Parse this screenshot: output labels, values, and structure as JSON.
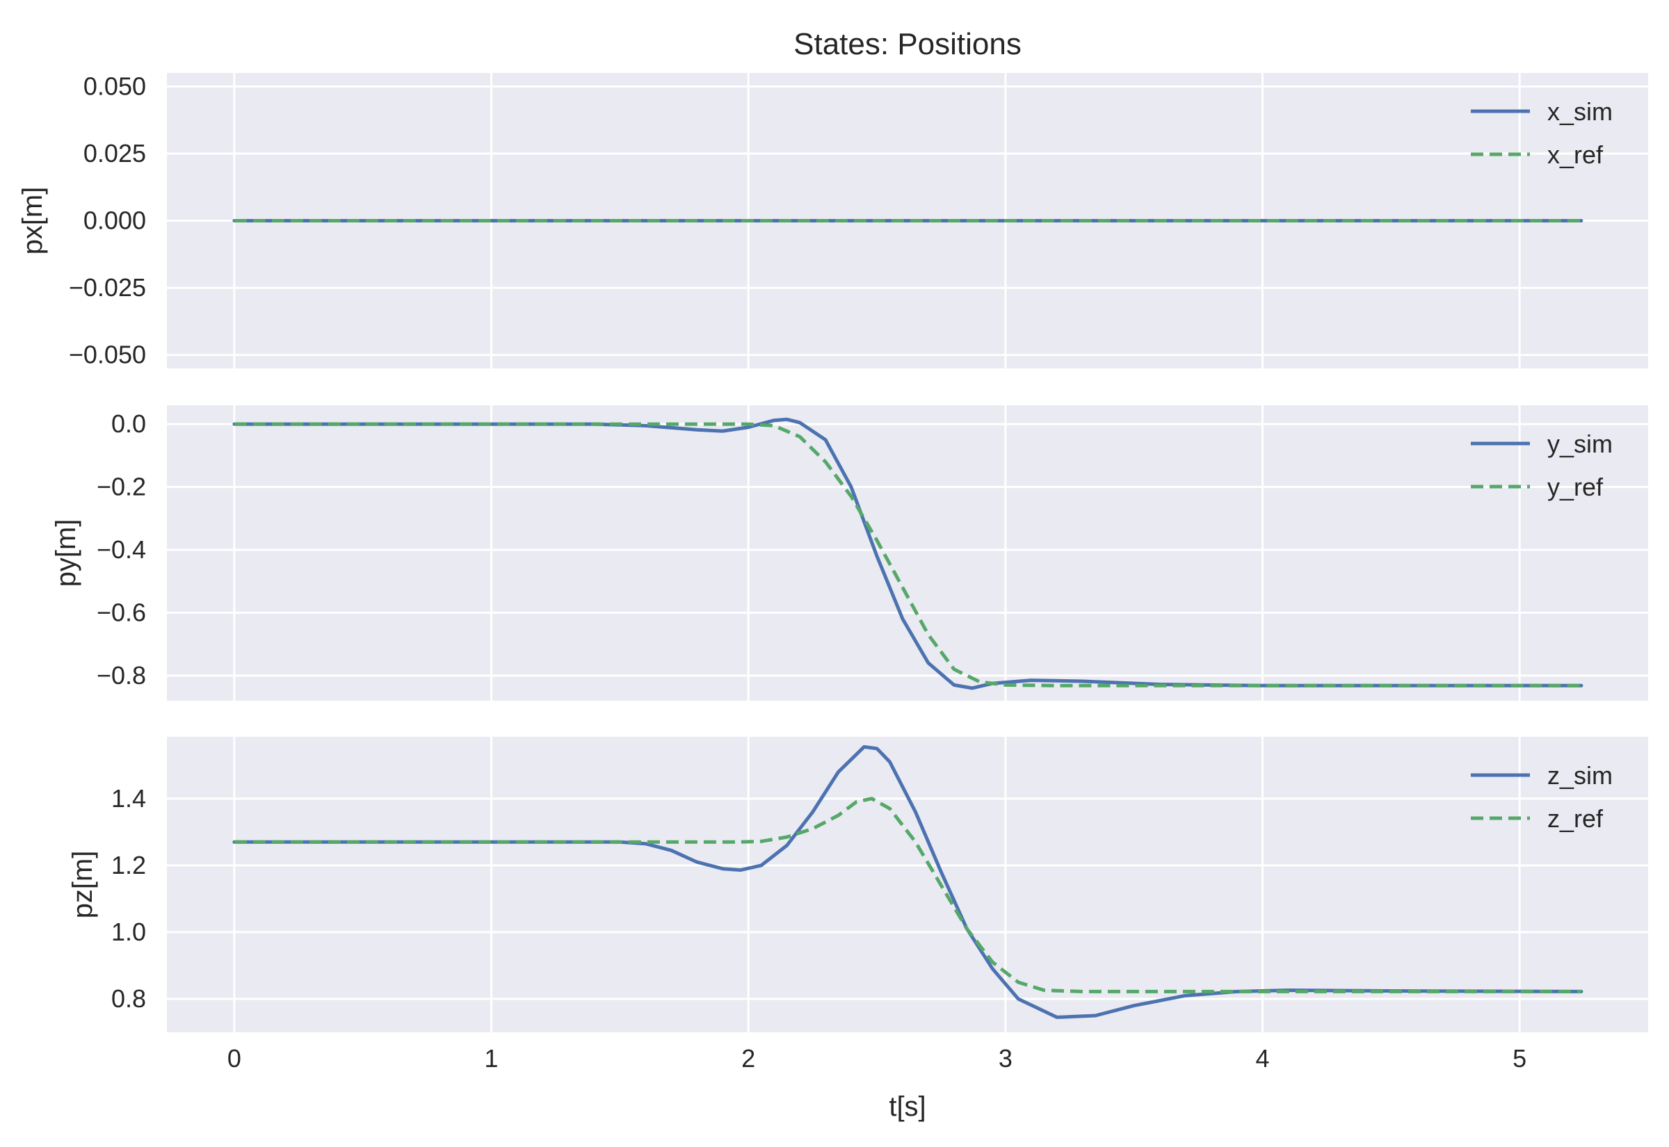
{
  "figure": {
    "title": "States: Positions",
    "xlabel": "t[s]",
    "x_ticks": [
      0,
      1,
      2,
      3,
      4,
      5
    ],
    "background": "#ffffff",
    "axes_face": "#eaeaf2",
    "grid_color": "#ffffff"
  },
  "chart_data": [
    {
      "type": "line",
      "title": "States: Positions",
      "xlabel": "",
      "ylabel": "px[m]",
      "xlim": [
        -0.262,
        5.5
      ],
      "ylim": [
        -0.055,
        0.055
      ],
      "grid": true,
      "legend_position": "top-right",
      "y_ticks": [
        -0.05,
        -0.025,
        0.0,
        0.025,
        0.05
      ],
      "y_tick_labels": [
        "−0.050",
        "−0.025",
        "0.000",
        "0.025",
        "0.050"
      ],
      "series": [
        {
          "name": "x_sim",
          "style": "solid",
          "color": "#4c72b0",
          "x": [
            0,
            5.24
          ],
          "y": [
            0,
            0
          ]
        },
        {
          "name": "x_ref",
          "style": "dashed",
          "color": "#55a868",
          "x": [
            0,
            5.24
          ],
          "y": [
            0,
            0
          ]
        }
      ]
    },
    {
      "type": "line",
      "xlabel": "",
      "ylabel": "py[m]",
      "xlim": [
        -0.262,
        5.5
      ],
      "ylim": [
        -0.88,
        0.06
      ],
      "grid": true,
      "legend_position": "top-right",
      "y_ticks": [
        0.0,
        -0.2,
        -0.4,
        -0.6,
        -0.8
      ],
      "y_tick_labels": [
        "0.0",
        "−0.2",
        "−0.4",
        "−0.6",
        "−0.8"
      ],
      "series": [
        {
          "name": "y_sim",
          "style": "solid",
          "color": "#4c72b0",
          "x": [
            0,
            1.4,
            1.6,
            1.8,
            1.9,
            2.0,
            2.1,
            2.15,
            2.2,
            2.3,
            2.4,
            2.5,
            2.6,
            2.7,
            2.8,
            2.87,
            2.95,
            3.1,
            3.3,
            3.6,
            4.0,
            4.5,
            5.24
          ],
          "y": [
            0,
            0,
            -0.005,
            -0.018,
            -0.022,
            -0.01,
            0.012,
            0.015,
            0.005,
            -0.05,
            -0.2,
            -0.42,
            -0.62,
            -0.76,
            -0.83,
            -0.84,
            -0.825,
            -0.815,
            -0.818,
            -0.828,
            -0.832,
            -0.832,
            -0.832
          ]
        },
        {
          "name": "y_ref",
          "style": "dashed",
          "color": "#55a868",
          "x": [
            0,
            1.9,
            2.0,
            2.1,
            2.2,
            2.3,
            2.4,
            2.5,
            2.6,
            2.7,
            2.8,
            2.9,
            3.0,
            3.2,
            5.24
          ],
          "y": [
            0,
            0,
            0,
            -0.005,
            -0.04,
            -0.12,
            -0.23,
            -0.37,
            -0.52,
            -0.67,
            -0.78,
            -0.82,
            -0.83,
            -0.832,
            -0.832
          ]
        }
      ]
    },
    {
      "type": "line",
      "xlabel": "t[s]",
      "ylabel": "pz[m]",
      "xlim": [
        -0.262,
        5.5
      ],
      "ylim": [
        0.7,
        1.585
      ],
      "grid": true,
      "legend_position": "top-right",
      "y_ticks": [
        0.8,
        1.0,
        1.2,
        1.4
      ],
      "y_tick_labels": [
        "0.8",
        "1.0",
        "1.2",
        "1.4"
      ],
      "series": [
        {
          "name": "z_sim",
          "style": "solid",
          "color": "#4c72b0",
          "x": [
            0,
            1.5,
            1.6,
            1.7,
            1.8,
            1.9,
            1.97,
            2.05,
            2.15,
            2.25,
            2.35,
            2.45,
            2.5,
            2.55,
            2.65,
            2.75,
            2.85,
            2.95,
            3.05,
            3.2,
            3.35,
            3.5,
            3.7,
            3.9,
            4.1,
            4.5,
            5.24
          ],
          "y": [
            1.27,
            1.27,
            1.265,
            1.245,
            1.21,
            1.19,
            1.186,
            1.2,
            1.26,
            1.36,
            1.48,
            1.555,
            1.55,
            1.51,
            1.36,
            1.18,
            1.01,
            0.89,
            0.8,
            0.745,
            0.75,
            0.78,
            0.81,
            0.822,
            0.826,
            0.824,
            0.822
          ]
        },
        {
          "name": "z_ref",
          "style": "dashed",
          "color": "#55a868",
          "x": [
            0,
            1.95,
            2.05,
            2.15,
            2.25,
            2.35,
            2.42,
            2.48,
            2.55,
            2.65,
            2.75,
            2.85,
            2.95,
            3.05,
            3.15,
            3.3,
            5.24
          ],
          "y": [
            1.27,
            1.27,
            1.272,
            1.285,
            1.31,
            1.35,
            1.39,
            1.4,
            1.37,
            1.27,
            1.14,
            1.01,
            0.91,
            0.85,
            0.826,
            0.822,
            0.822
          ]
        }
      ]
    }
  ]
}
